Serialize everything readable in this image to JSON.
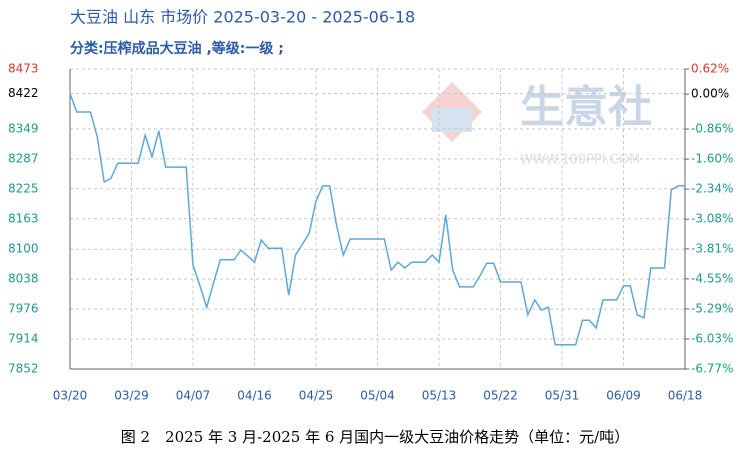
{
  "chart_data": {
    "type": "line",
    "title": "大豆油 山东 市场价 2025-03-20 - 2025-06-18",
    "subtitle": "分类:压榨成品大豆油 ,等级:一级 ;",
    "watermark": "生意社",
    "watermark_sub": "WWW.100PPI.COM",
    "caption": "图 2　2025 年 3 月-2025 年 6 月国内一级大豆油价格走势（单位：元/吨）",
    "color": "#5ea8d8",
    "grid": true,
    "categories": [
      "03/20",
      null,
      null,
      null,
      null,
      null,
      null,
      null,
      null,
      "03/29",
      null,
      null,
      null,
      null,
      null,
      null,
      null,
      null,
      "04/07",
      null,
      null,
      null,
      null,
      null,
      null,
      null,
      null,
      "04/16",
      null,
      null,
      null,
      null,
      null,
      null,
      null,
      null,
      "04/25",
      null,
      null,
      null,
      null,
      null,
      null,
      null,
      null,
      "05/04",
      null,
      null,
      null,
      null,
      null,
      null,
      null,
      null,
      "05/13",
      null,
      null,
      null,
      null,
      null,
      null,
      null,
      null,
      "05/22",
      null,
      null,
      null,
      null,
      null,
      null,
      null,
      null,
      "05/31",
      null,
      null,
      null,
      null,
      null,
      null,
      null,
      null,
      "06/09",
      null,
      null,
      null,
      null,
      null,
      null,
      null,
      null,
      "06/18"
    ],
    "values": [
      8422,
      8384,
      8384,
      8384,
      8332,
      8239,
      8247,
      8278,
      8278,
      8278,
      8278,
      8336,
      8291,
      8345,
      8270,
      8270,
      8270,
      8270,
      8067,
      8025,
      7980,
      8030,
      8078,
      8078,
      8078,
      8098,
      8086,
      8073,
      8119,
      8102,
      8102,
      8102,
      8005,
      8088,
      8110,
      8133,
      8200,
      8231,
      8231,
      8150,
      8088,
      8121,
      8121,
      8121,
      8121,
      8121,
      8121,
      8057,
      8073,
      8061,
      8073,
      8073,
      8073,
      8088,
      8073,
      8171,
      8057,
      8022,
      8022,
      8022,
      8045,
      8071,
      8071,
      8032,
      8032,
      8032,
      8032,
      7964,
      7995,
      7974,
      7980,
      7902,
      7902,
      7902,
      7902,
      7953,
      7953,
      7937,
      7995,
      7995,
      7995,
      8024,
      8024,
      7964,
      7958,
      8061,
      8061,
      8061,
      8223,
      8231,
      8231
    ],
    "ylim": [
      7852,
      8473
    ],
    "yticks": [
      8473,
      8422,
      8349,
      8287,
      8225,
      8163,
      8100,
      8038,
      7976,
      7914,
      7852
    ],
    "y2lim": [
      -6.77,
      0.62
    ],
    "y2ticks": [
      {
        "value": 0.62,
        "label": "0.62%"
      },
      {
        "value": 0,
        "label": "0.00%"
      },
      {
        "value": -0.86,
        "label": "-0.86%"
      },
      {
        "value": -1.6,
        "label": "-1.60%"
      },
      {
        "value": -2.34,
        "label": "-2.34%"
      },
      {
        "value": -3.08,
        "label": "-3.08%"
      },
      {
        "value": -3.81,
        "label": "-3.81%"
      },
      {
        "value": -4.55,
        "label": "-4.55%"
      },
      {
        "value": -5.29,
        "label": "-5.29%"
      },
      {
        "value": -6.03,
        "label": "-6.03%"
      },
      {
        "value": -6.77,
        "label": "-6.77%"
      }
    ]
  }
}
